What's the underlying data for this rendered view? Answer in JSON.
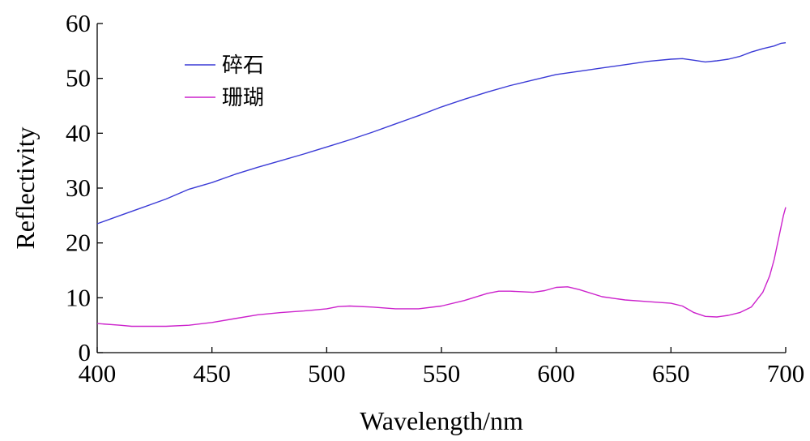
{
  "chart_data": {
    "type": "line",
    "title": "",
    "xlabel": "Wavelength/nm",
    "ylabel": "Reflectivity",
    "xlim": [
      400,
      700
    ],
    "ylim": [
      0,
      60
    ],
    "xticks": [
      "400",
      "450",
      "500",
      "550",
      "600",
      "650",
      "700"
    ],
    "yticks": [
      "0",
      "10",
      "20",
      "30",
      "40",
      "50",
      "60"
    ],
    "grid": false,
    "legend_position": "top-left",
    "series": [
      {
        "name": "碎石",
        "color": "#3a3ad6",
        "x": [
          400,
          410,
          420,
          430,
          440,
          450,
          460,
          470,
          480,
          490,
          500,
          510,
          520,
          530,
          540,
          550,
          560,
          570,
          580,
          590,
          600,
          610,
          620,
          630,
          640,
          650,
          655,
          660,
          665,
          670,
          675,
          680,
          685,
          690,
          695,
          698,
          700
        ],
        "values": [
          23.5,
          25.0,
          26.5,
          28.0,
          29.8,
          31.0,
          32.5,
          33.8,
          35.0,
          36.2,
          37.5,
          38.8,
          40.2,
          41.7,
          43.2,
          44.8,
          46.2,
          47.5,
          48.7,
          49.7,
          50.7,
          51.3,
          51.9,
          52.5,
          53.1,
          53.5,
          53.6,
          53.3,
          53.0,
          53.2,
          53.5,
          54.0,
          54.8,
          55.4,
          55.9,
          56.4,
          56.5
        ]
      },
      {
        "name": "珊瑚",
        "color": "#cc22cc",
        "x": [
          400,
          410,
          415,
          420,
          430,
          440,
          450,
          460,
          470,
          480,
          490,
          500,
          505,
          510,
          520,
          530,
          540,
          550,
          560,
          570,
          575,
          580,
          590,
          595,
          600,
          605,
          610,
          620,
          630,
          640,
          650,
          655,
          660,
          665,
          670,
          675,
          680,
          685,
          690,
          693,
          695,
          697,
          699,
          700
        ],
        "values": [
          5.3,
          5.0,
          4.8,
          4.8,
          4.8,
          5.0,
          5.5,
          6.2,
          6.9,
          7.3,
          7.6,
          8.0,
          8.4,
          8.5,
          8.3,
          8.0,
          8.0,
          8.5,
          9.5,
          10.8,
          11.2,
          11.2,
          11.0,
          11.3,
          11.9,
          12.0,
          11.5,
          10.2,
          9.6,
          9.3,
          9.0,
          8.5,
          7.3,
          6.6,
          6.5,
          6.8,
          7.3,
          8.3,
          11.0,
          14.0,
          17.0,
          21.0,
          25.0,
          26.5
        ]
      }
    ]
  }
}
